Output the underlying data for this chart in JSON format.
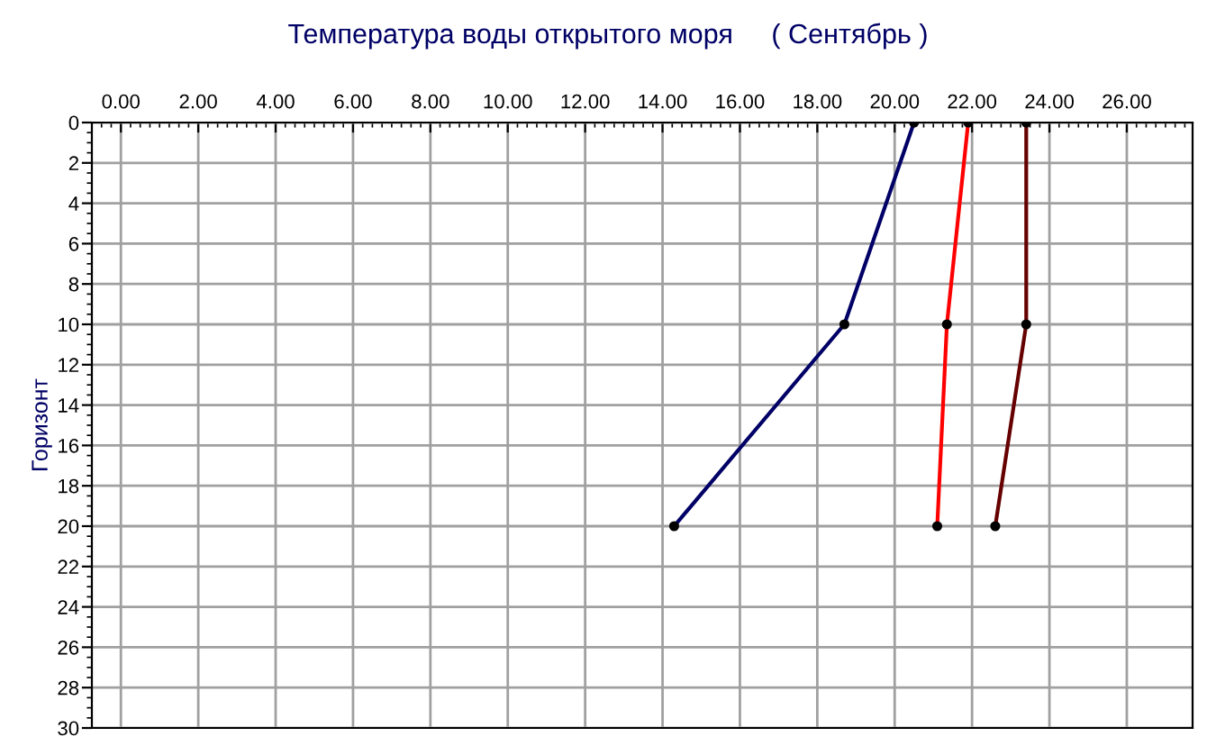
{
  "chart_data": {
    "type": "line",
    "title": "Температура воды открытого моря     ( Сентябрь )",
    "ylabel": "Горизонт",
    "series": [
      {
        "color": "#000066",
        "x": [
          20.5,
          18.7,
          14.3
        ],
        "values": [
          0,
          10,
          20
        ]
      },
      {
        "color": "#ff0000",
        "x": [
          21.9,
          21.35,
          21.1
        ],
        "values": [
          0,
          10,
          20
        ]
      },
      {
        "color": "#660000",
        "x": [
          23.4,
          23.4,
          22.6
        ],
        "values": [
          0,
          10,
          20
        ]
      }
    ],
    "xlim": [
      -0.75,
      27.7
    ],
    "ylim": [
      30,
      0
    ],
    "xticks": [
      {
        "value": 0,
        "label": "0.00"
      },
      {
        "value": 2,
        "label": "2.00"
      },
      {
        "value": 4,
        "label": "4.00"
      },
      {
        "value": 6,
        "label": "6.00"
      },
      {
        "value": 8,
        "label": "8.00"
      },
      {
        "value": 10,
        "label": "10.00"
      },
      {
        "value": 12,
        "label": "12.00"
      },
      {
        "value": 14,
        "label": "14.00"
      },
      {
        "value": 16,
        "label": "16.00"
      },
      {
        "value": 18,
        "label": "18.00"
      },
      {
        "value": 20,
        "label": "20.00"
      },
      {
        "value": 22,
        "label": "22.00"
      },
      {
        "value": 24,
        "label": "24.00"
      },
      {
        "value": 26,
        "label": "26.00"
      }
    ],
    "yticks": [
      0,
      2,
      4,
      6,
      8,
      10,
      12,
      14,
      16,
      18,
      20,
      22,
      24,
      26,
      28,
      30
    ],
    "grid": true,
    "marker": "circle",
    "line_style": "solid"
  }
}
